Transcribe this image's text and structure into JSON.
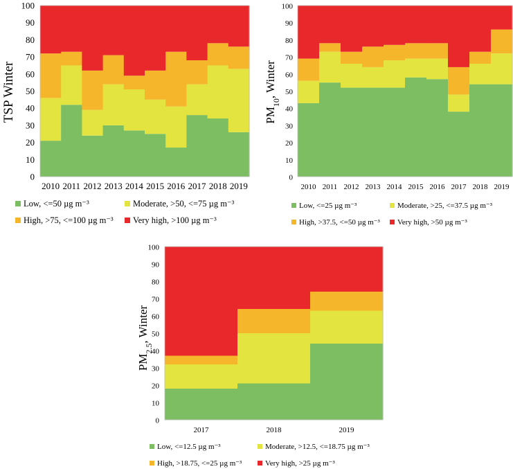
{
  "colors": {
    "low": "#7dbe63",
    "moderate": "#e3e43f",
    "high": "#f6b62b",
    "very_high": "#e8282b"
  },
  "chart_data": [
    {
      "id": "tsp",
      "type": "area",
      "stacked": true,
      "step": true,
      "ylabel": "TSP Winter",
      "ylim": [
        0,
        100
      ],
      "yticks": [
        0,
        10,
        20,
        30,
        40,
        50,
        60,
        70,
        80,
        90,
        100
      ],
      "categories": [
        "2010",
        "2011",
        "2012",
        "2013",
        "2014",
        "2015",
        "2016",
        "2017",
        "2018",
        "2019"
      ],
      "series": [
        {
          "key": "low",
          "name": "Low, <=50 µg m⁻³",
          "values": [
            21,
            42,
            24,
            30,
            27,
            25,
            17,
            36,
            34,
            26
          ]
        },
        {
          "key": "moderate",
          "name": "Moderate, >50, <=75 µg m⁻³",
          "values": [
            25,
            23,
            15,
            24,
            24,
            20,
            24,
            18,
            31,
            37
          ]
        },
        {
          "key": "high",
          "name": "High, >75, <=100 µg m⁻³",
          "values": [
            26,
            8,
            23,
            17,
            8,
            17,
            32,
            14,
            13,
            13
          ]
        },
        {
          "key": "very_high",
          "name": "Very high, >100 µg m⁻³",
          "values": [
            28,
            27,
            38,
            29,
            41,
            38,
            27,
            32,
            22,
            24
          ]
        }
      ]
    },
    {
      "id": "pm10",
      "type": "area",
      "stacked": true,
      "step": true,
      "ylabel_main": "PM",
      "ylabel_sub": "10",
      "ylabel_rest": ",  Winter",
      "ylim": [
        0,
        100
      ],
      "yticks": [
        0,
        10,
        20,
        30,
        40,
        50,
        60,
        70,
        80,
        90,
        100
      ],
      "categories": [
        "2010",
        "2011",
        "2012",
        "2013",
        "2014",
        "2015",
        "2016",
        "2017",
        "2018",
        "2019"
      ],
      "series": [
        {
          "key": "low",
          "name": "Low, <=25 µg m⁻³",
          "values": [
            43,
            55,
            52,
            52,
            52,
            58,
            57,
            38,
            54,
            54
          ]
        },
        {
          "key": "moderate",
          "name": "Moderate, >25, <=37.5 µg m⁻³",
          "values": [
            13,
            18,
            14,
            12,
            16,
            11,
            12,
            10,
            12,
            18
          ]
        },
        {
          "key": "high",
          "name": "High, >37.5, <=50 µg m⁻³",
          "values": [
            13,
            5,
            7,
            12,
            9,
            9,
            9,
            16,
            7,
            14
          ]
        },
        {
          "key": "very_high",
          "name": "Very high, >50 µg m⁻³",
          "values": [
            31,
            22,
            27,
            24,
            23,
            22,
            22,
            36,
            27,
            14
          ]
        }
      ]
    },
    {
      "id": "pm25",
      "type": "area",
      "stacked": true,
      "step": true,
      "ylabel_main": "PM",
      "ylabel_sub": "2.5",
      "ylabel_rest": ",  Winter",
      "ylim": [
        0,
        100
      ],
      "yticks": [
        0,
        10,
        20,
        30,
        40,
        50,
        60,
        70,
        80,
        90,
        100
      ],
      "categories": [
        "2017",
        "2018",
        "2019"
      ],
      "series": [
        {
          "key": "low",
          "name": "Low, <=12.5 µg m⁻³",
          "values": [
            18,
            21,
            44
          ]
        },
        {
          "key": "moderate",
          "name": "Moderate, >12.5, <=18.75 µg m⁻³",
          "values": [
            14,
            29,
            19
          ]
        },
        {
          "key": "high",
          "name": "High, >18.75, <=25 µg m⁻³",
          "values": [
            5,
            14,
            11
          ]
        },
        {
          "key": "very_high",
          "name": "Very high, >25 µg m⁻³",
          "values": [
            63,
            36,
            26
          ]
        }
      ]
    }
  ]
}
